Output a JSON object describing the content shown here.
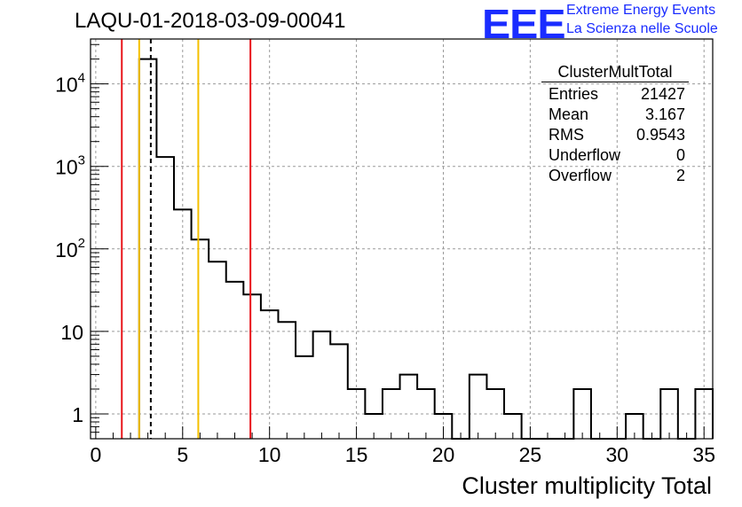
{
  "header": {
    "title": "LAQU-01-2018-03-09-00041",
    "logo_text": "EEE",
    "logo_line1": "Extreme Energy Events",
    "logo_line2": "La Scienza nelle Scuole"
  },
  "colors": {
    "logo": "#1a2cff",
    "red_line": "#e8151b",
    "yellow_line": "#f5c000",
    "grid": "#9a9a9a"
  },
  "stats_box": {
    "name": "ClusterMultTotal",
    "rows": [
      {
        "label": "Entries",
        "value": "21427"
      },
      {
        "label": "Mean",
        "value": "3.167"
      },
      {
        "label": "RMS",
        "value": "0.9543"
      },
      {
        "label": "Underflow",
        "value": "0"
      },
      {
        "label": "Overflow",
        "value": "2"
      }
    ]
  },
  "chart_data": {
    "type": "histogram",
    "title": "LAQU-01-2018-03-09-00041",
    "xlabel": "Cluster multiplicity Total",
    "ylabel": "",
    "xlim": [
      -0.3,
      35.5
    ],
    "ylim": [
      0.5,
      35000
    ],
    "log_y": true,
    "grid": true,
    "bin_width": 1,
    "bin_edges_start": 2.5,
    "counts": [
      20000,
      1300,
      300,
      130,
      70,
      40,
      28,
      18,
      13,
      5,
      10,
      7,
      2,
      1,
      2,
      3,
      2,
      1,
      0,
      3,
      2,
      1,
      0,
      0,
      0,
      2,
      0,
      0,
      1,
      0,
      2,
      0,
      2
    ],
    "x_ticks": [
      0,
      5,
      10,
      15,
      20,
      25,
      30,
      35
    ],
    "x_tick_labels": [
      "0",
      "5",
      "10",
      "15",
      "20",
      "25",
      "30",
      "35"
    ],
    "y_ticks": [
      1,
      10,
      100,
      1000,
      10000
    ],
    "y_tick_labels": [
      {
        "base": "1",
        "exp": ""
      },
      {
        "base": "10",
        "exp": ""
      },
      {
        "base": "10",
        "exp": "2"
      },
      {
        "base": "10",
        "exp": "3"
      },
      {
        "base": "10",
        "exp": "4"
      }
    ],
    "vertical_lines": [
      {
        "x": 1.5,
        "color": "red",
        "style": "solid"
      },
      {
        "x": 8.9,
        "color": "red",
        "style": "solid"
      },
      {
        "x": 2.5,
        "color": "yellow",
        "style": "solid"
      },
      {
        "x": 5.9,
        "color": "yellow",
        "style": "solid"
      },
      {
        "x": 3.167,
        "color": "black",
        "style": "dashed"
      }
    ]
  }
}
